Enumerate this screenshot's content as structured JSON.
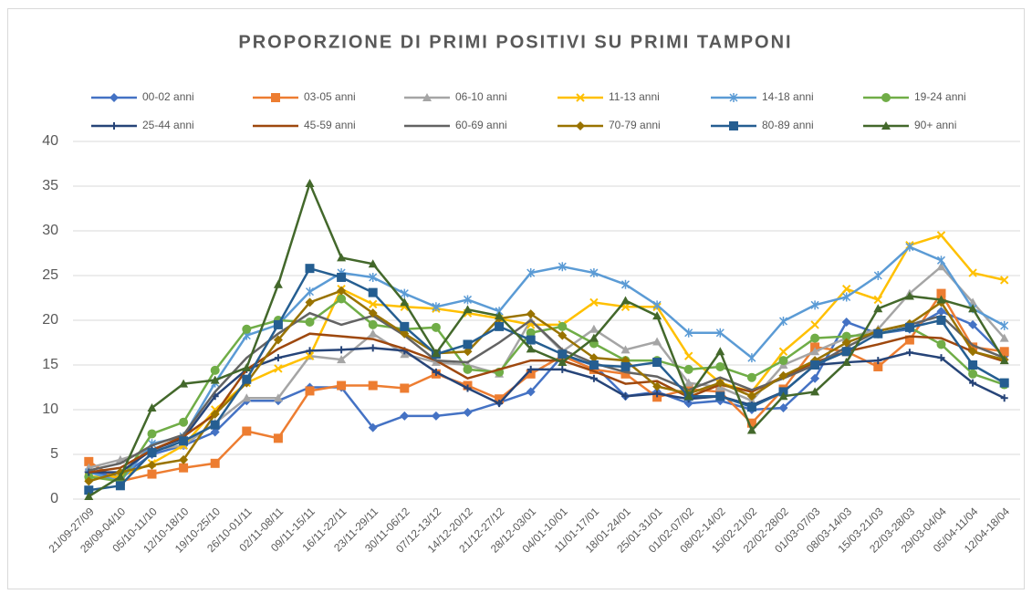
{
  "chart_data": {
    "type": "line",
    "title": "PROPORZIONE DI PRIMI POSITIVI SU PRIMI TAMPONI",
    "categories": [
      "21/09-27/09",
      "28/09-04/10",
      "05/10-11/10",
      "12/10-18/10",
      "19/10-25/10",
      "26/10-01/11",
      "02/11-08/11",
      "09/11-15/11",
      "16/11-22/11",
      "23/11-29/11",
      "30/11-06/12",
      "07/12-13/12",
      "14/12-20/12",
      "21/12-27/12",
      "28/12-03/01",
      "04/01-10/01",
      "11/01-17/01",
      "18/01-24/01",
      "25/01-31/01",
      "01/02-07/02",
      "08/02-14/02",
      "15/02-21/02",
      "22/02-28/02",
      "01/03-07/03",
      "08/03-14/03",
      "15/03-21/03",
      "22/03-28/03",
      "29/03-04/04",
      "05/04-11/04",
      "12/04-18/04"
    ],
    "ylim": [
      0,
      40
    ],
    "yticks": [
      0,
      5,
      10,
      15,
      20,
      25,
      30,
      35,
      40
    ],
    "grid": true,
    "legend": "top",
    "series": [
      {
        "name": "00-02 anni",
        "color": "#4472c4",
        "marker": "diamond",
        "values": [
          3,
          2.5,
          5,
          6,
          7.5,
          11,
          11,
          12.5,
          12.5,
          8,
          9.3,
          9.3,
          9.7,
          10.8,
          12,
          16,
          15,
          11.5,
          12,
          10.7,
          11,
          10,
          10.2,
          13.5,
          19.8,
          18.5,
          19,
          21,
          19.5,
          16
        ]
      },
      {
        "name": "03-05 anni",
        "color": "#ed7d31",
        "marker": "square",
        "values": [
          4.2,
          2,
          2.8,
          3.5,
          4,
          7.6,
          6.8,
          12.1,
          12.7,
          12.7,
          12.4,
          14,
          12.7,
          11.2,
          14,
          16,
          14.5,
          14,
          11.4,
          12.3,
          12,
          8.5,
          12.3,
          17,
          16.5,
          14.8,
          17.8,
          23,
          17,
          16.5
        ]
      },
      {
        "name": "06-10 anni",
        "color": "#a5a5a5",
        "marker": "triangle",
        "values": [
          3.5,
          4.4,
          5.5,
          6,
          8.5,
          11.3,
          11.3,
          16,
          15.6,
          18.5,
          16.2,
          15.3,
          15,
          14,
          20,
          16.5,
          19,
          16.7,
          17.6,
          13,
          12.5,
          11,
          15,
          16.5,
          18,
          19,
          23,
          26,
          22,
          18
        ]
      },
      {
        "name": "11-13 anni",
        "color": "#ffc000",
        "marker": "x",
        "values": [
          2.5,
          2.5,
          4,
          6,
          10,
          13,
          14.6,
          16,
          23.5,
          21.8,
          21.5,
          21.3,
          20.8,
          20.2,
          19.5,
          19.5,
          22,
          21.5,
          21.5,
          16,
          13,
          12,
          16.5,
          19.5,
          23.5,
          22.3,
          28.4,
          29.5,
          25.3,
          24.5
        ]
      },
      {
        "name": "14-18 anni",
        "color": "#5b9bd5",
        "marker": "star",
        "values": [
          3,
          2,
          6.2,
          7,
          13,
          18.3,
          19.5,
          23.2,
          25.3,
          24.8,
          23,
          21.5,
          22.3,
          21,
          25.3,
          26,
          25.3,
          24,
          21.7,
          18.6,
          18.6,
          15.8,
          19.9,
          21.7,
          22.6,
          25,
          28.2,
          26.7,
          21.3,
          19.4
        ]
      },
      {
        "name": "19-24 anni",
        "color": "#70ad47",
        "marker": "circle",
        "values": [
          2.5,
          2,
          7.3,
          8.6,
          14.4,
          19,
          20,
          19.8,
          22.4,
          19.5,
          19,
          19.2,
          14.5,
          14.2,
          18.6,
          19.3,
          17.4,
          15.5,
          15.5,
          14.5,
          14.8,
          13.6,
          15.5,
          18,
          18.2,
          18.5,
          19.2,
          17.3,
          14,
          12.8
        ]
      },
      {
        "name": "25-44 anni",
        "color": "#264478",
        "marker": "plus",
        "values": [
          3,
          3,
          5.5,
          6.8,
          11.5,
          14.5,
          15.8,
          16.6,
          16.7,
          16.9,
          16.6,
          14.2,
          12.4,
          10.7,
          14.5,
          14.5,
          13.5,
          11.5,
          11.8,
          11.2,
          11.5,
          10.5,
          12,
          15,
          15.3,
          15.5,
          16.4,
          15.8,
          13,
          11.3
        ]
      },
      {
        "name": "45-59 anni",
        "color": "#9e480e",
        "marker": "none",
        "values": [
          3,
          3.5,
          5.5,
          7,
          9.5,
          14.5,
          16.8,
          18.5,
          18.2,
          17.9,
          16.8,
          15.5,
          13.5,
          14.5,
          15.5,
          15.5,
          14.3,
          12.9,
          13.2,
          11.4,
          12.8,
          12,
          13.7,
          15.3,
          16.5,
          17.3,
          18.2,
          18,
          16.5,
          15.4
        ]
      },
      {
        "name": "60-69 anni",
        "color": "#636363",
        "marker": "none",
        "values": [
          3.2,
          4,
          6,
          7.2,
          12,
          15.8,
          18.5,
          20.8,
          19.5,
          20.5,
          18.3,
          15.5,
          15.3,
          17.5,
          20,
          16.7,
          15.2,
          14.2,
          13.7,
          12.2,
          13.6,
          12.2,
          13.5,
          15,
          17,
          18.8,
          19.5,
          20.5,
          17.2,
          15.8
        ]
      },
      {
        "name": "70-79 anni",
        "color": "#997300",
        "marker": "diamond",
        "values": [
          2,
          3,
          3.8,
          4.4,
          9.5,
          13,
          17.8,
          22,
          23.3,
          20.8,
          18.5,
          16.3,
          16.5,
          20.2,
          20.7,
          18.3,
          15.8,
          15.5,
          12.6,
          11.8,
          13,
          11.5,
          13.8,
          15.5,
          17.5,
          18.8,
          19.6,
          22,
          16.5,
          15.6
        ]
      },
      {
        "name": "80-89 anni",
        "color": "#255e91",
        "marker": "square",
        "values": [
          1,
          1.5,
          5.2,
          6.5,
          8.3,
          13.4,
          19.5,
          25.8,
          24.8,
          23.1,
          19.3,
          16.2,
          17.3,
          19.3,
          17.8,
          16.2,
          15,
          14.8,
          15.3,
          11.5,
          11.5,
          10.3,
          12,
          15,
          16.5,
          18.5,
          19.2,
          20,
          15,
          13
        ]
      },
      {
        "name": "90+ anni",
        "color": "#43682b",
        "marker": "triangle",
        "values": [
          0.3,
          2.5,
          10.2,
          12.9,
          13.3,
          14.7,
          24,
          35.3,
          27,
          26.3,
          22,
          16.3,
          21.2,
          20.5,
          16.8,
          15.3,
          18,
          22.2,
          20.5,
          11.5,
          16.5,
          7.7,
          11.5,
          12,
          15.3,
          21.3,
          22.7,
          22.3,
          21.3,
          15.5
        ]
      }
    ]
  }
}
